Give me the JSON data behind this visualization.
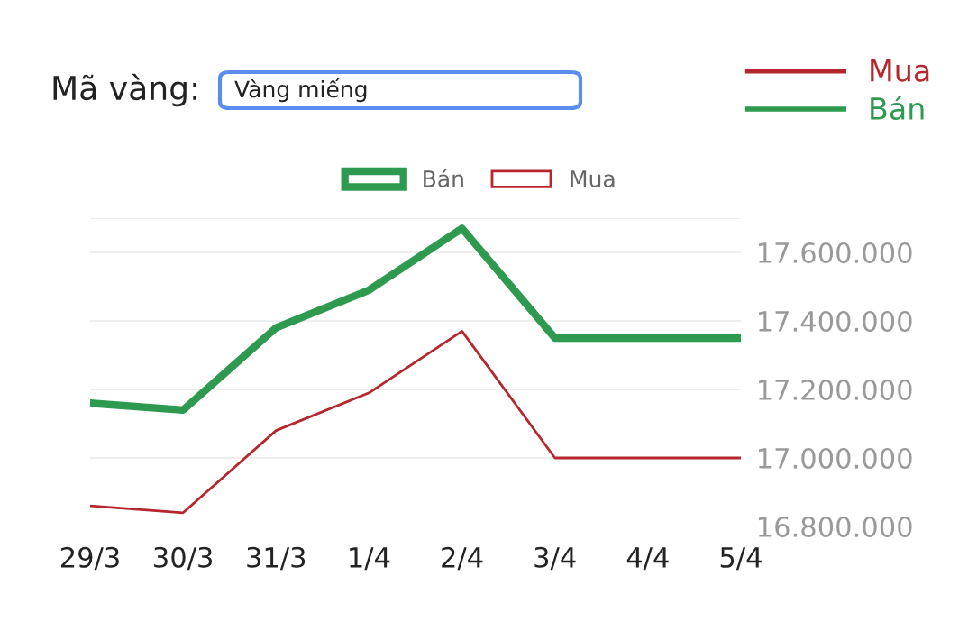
{
  "chart_data": {
    "type": "line",
    "annotations": [
      "Mã vàng:",
      "Vàng miếng"
    ],
    "categories": [
      "29/3",
      "30/3",
      "31/3",
      "1/4",
      "2/4",
      "3/4",
      "4/4",
      "5/4"
    ],
    "series": [
      {
        "name": "Bán",
        "color": "#2e9a4f",
        "values": [
          17160000,
          17140000,
          17380000,
          17490000,
          17670000,
          17350000,
          17350000,
          17350000
        ]
      },
      {
        "name": "Mua",
        "color": "#b5272d",
        "values": [
          16860000,
          16840000,
          17080000,
          17190000,
          17370000,
          17000000,
          17000000,
          17000000
        ]
      }
    ],
    "ylim": [
      16800000,
      17700000
    ],
    "yticks": [
      {
        "value": 16800000,
        "label": "16.800.000"
      },
      {
        "value": 17000000,
        "label": "17.000.000"
      },
      {
        "value": 17200000,
        "label": "17.200.000"
      },
      {
        "value": 17400000,
        "label": "17.400.000"
      },
      {
        "value": 17600000,
        "label": "17.600.000"
      },
      {
        "value": 17700000,
        "label": null
      }
    ],
    "grid": "y",
    "legend": "top",
    "marker": "none",
    "line_style": "solid"
  }
}
